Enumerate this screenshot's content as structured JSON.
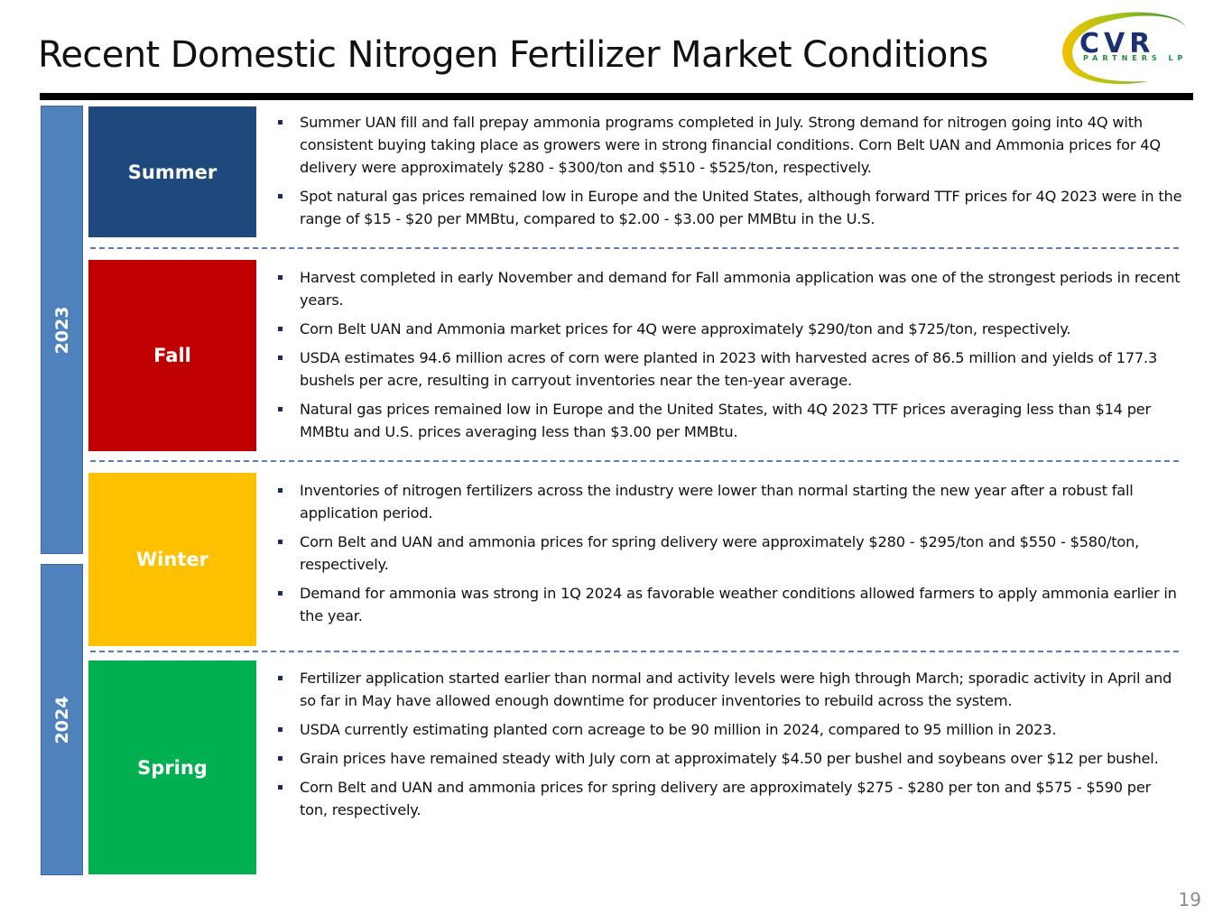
{
  "title": "Recent Domestic Nitrogen Fertilizer Market Conditions",
  "logo": {
    "name": "CVR",
    "subtitle": "PARTNERS LP"
  },
  "years": [
    "2023",
    "2024"
  ],
  "seasons": [
    {
      "label": "Summer",
      "color": "#1f497d",
      "bullets": [
        "Summer UAN fill and fall prepay ammonia programs completed in July. Strong demand for nitrogen going into 4Q with consistent buying taking place as growers were in strong financial conditions. Corn Belt UAN and Ammonia prices for 4Q delivery were approximately $280 - $300/ton and $510 - $525/ton, respectively.",
        "Spot natural gas prices remained low in Europe and the United States, although forward TTF prices for 4Q 2023 were in the range of $15 - $20 per MMBtu, compared to $2.00 - $3.00 per MMBtu in the U.S."
      ]
    },
    {
      "label": "Fall",
      "color": "#c00000",
      "bullets": [
        "Harvest completed in early November and demand for Fall ammonia application was one of the strongest periods in recent years.",
        "Corn Belt UAN and Ammonia market prices for 4Q were approximately $290/ton and $725/ton, respectively.",
        "USDA estimates 94.6 million acres of corn were planted in 2023 with harvested acres of 86.5 million and yields of 177.3 bushels per acre, resulting in carryout inventories near the ten-year average.",
        "Natural gas prices remained low in Europe and the United States, with 4Q 2023 TTF prices averaging less than $14 per MMBtu and U.S. prices averaging less than $3.00 per MMBtu."
      ]
    },
    {
      "label": "Winter",
      "color": "#ffc000",
      "bullets": [
        "Inventories of nitrogen fertilizers across the industry were lower than normal starting the new year after a robust fall application period.",
        "Corn Belt and UAN and ammonia prices for spring delivery were approximately $280 - $295/ton and $550 - $580/ton, respectively.",
        "Demand for ammonia was strong in 1Q 2024 as favorable weather conditions allowed farmers to apply ammonia earlier in the year."
      ]
    },
    {
      "label": "Spring",
      "color": "#00b050",
      "bullets": [
        "Fertilizer application started earlier than normal and activity levels were high through March; sporadic activity in April and so far in May have allowed enough downtime for producer inventories to rebuild across the system.",
        "USDA currently estimating planted corn acreage to be 90 million in 2024, compared to 95 million in 2023.",
        "Grain prices have remained steady with July corn at approximately $4.50 per bushel and soybeans over $12 per bushel.",
        "Corn Belt and UAN and ammonia prices for spring delivery are approximately $275 - $280 per ton and $575 - $590 per ton, respectively."
      ]
    }
  ],
  "page_number": "19"
}
